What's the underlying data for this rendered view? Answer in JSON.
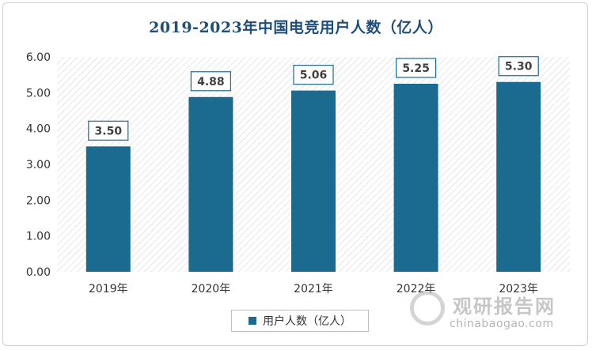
{
  "chart_data": {
    "type": "bar",
    "title": "2019-2023年中国电竞用户人数（亿人）",
    "categories": [
      "2019年",
      "2020年",
      "2021年",
      "2022年",
      "2023年"
    ],
    "series": [
      {
        "name": "用户人数（亿人）",
        "values": [
          3.5,
          4.88,
          5.06,
          5.25,
          5.3
        ]
      }
    ],
    "data_labels": [
      "3.50",
      "4.88",
      "5.06",
      "5.25",
      "5.30"
    ],
    "y_ticks": [
      "0.00",
      "1.00",
      "2.00",
      "3.00",
      "4.00",
      "5.00",
      "6.00"
    ],
    "ylim": [
      0,
      6
    ],
    "grid": false,
    "legend_position": "bottom",
    "colors": {
      "bar": "#1b6a8f",
      "label_border": "#1b6a8f",
      "title": "#1f4e79"
    }
  },
  "watermark": {
    "cn": "观研报告网",
    "en": "chinabaogao.com"
  }
}
